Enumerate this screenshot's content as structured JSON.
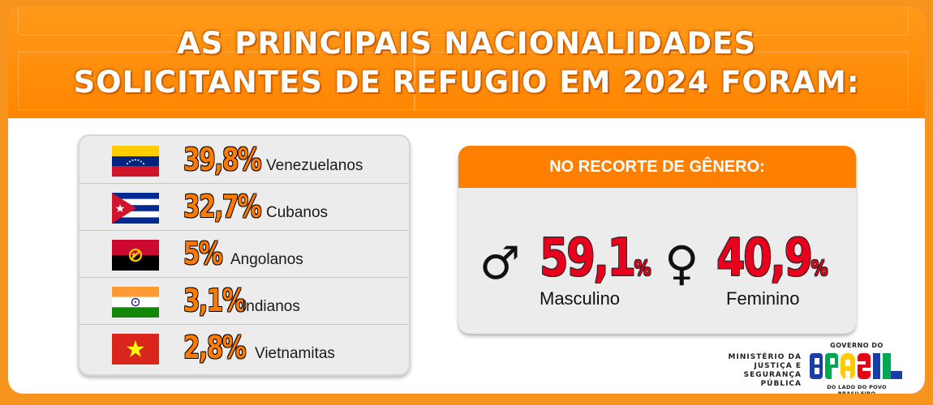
{
  "title": {
    "line1": "AS PRINCIPAIS NACIONALIDADES",
    "line2": "SOLICITANTES DE REFUGIO EM 2024 FORAM:"
  },
  "nationalities": [
    {
      "percent": "39,8%",
      "label": "Venezuelanos",
      "flag": "venezuela-flag-icon"
    },
    {
      "percent": "32,7%",
      "label": "Cubanos",
      "flag": "cuba-flag-icon"
    },
    {
      "percent": "5%",
      "label": "Angolanos",
      "flag": "angola-flag-icon"
    },
    {
      "percent": "3,1%",
      "label": "Indianos",
      "flag": "india-flag-icon"
    },
    {
      "percent": "2,8%",
      "label": "Vietnamitas",
      "flag": "vietnam-flag-icon"
    }
  ],
  "gender": {
    "header": "NO RECORTE DE GÊNERO:",
    "male": {
      "value": "59,1",
      "unit": "%",
      "label": "Masculino",
      "icon": "male-symbol-icon",
      "symbol": "♂"
    },
    "female": {
      "value": "40,9",
      "unit": "%",
      "label": "Feminino",
      "icon": "female-symbol-icon",
      "symbol": "♀"
    }
  },
  "logos": {
    "ministry": [
      "MINISTÉRIO DA",
      "JUSTIÇA E",
      "SEGURANÇA PÚBLICA"
    ],
    "government": {
      "top": "GOVERNO DO",
      "word": "BRASIL",
      "bottom": "DO LADO DO POVO BRASILEIRO"
    }
  },
  "colors": {
    "orange": "#ff8c00",
    "percent_orange": "#ff7a00",
    "gender_red": "#e8001c"
  }
}
